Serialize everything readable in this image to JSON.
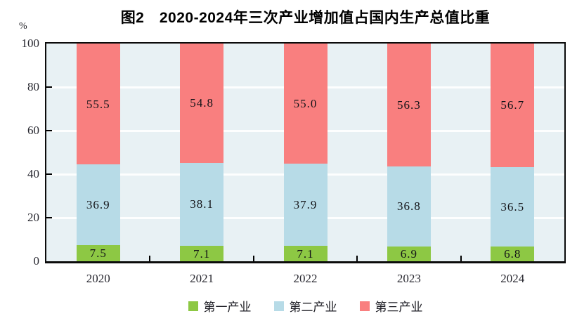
{
  "title": "图2　2020-2024年三次产业增加值占国内生产总值比重",
  "y_axis_unit": "%",
  "chart_data": {
    "type": "bar",
    "stacked": true,
    "title": "图2　2020-2024年三次产业增加值占国内生产总值比重",
    "categories": [
      "2020",
      "2021",
      "2022",
      "2023",
      "2024"
    ],
    "series": [
      {
        "name": "第一产业",
        "color": "#8dc844",
        "values": [
          7.5,
          7.1,
          7.1,
          6.9,
          6.8
        ]
      },
      {
        "name": "第二产业",
        "color": "#b7dbe7",
        "values": [
          36.9,
          38.1,
          37.9,
          36.8,
          36.5
        ]
      },
      {
        "name": "第三产业",
        "color": "#f97f7f",
        "values": [
          55.5,
          54.8,
          55.0,
          56.3,
          56.7
        ]
      }
    ],
    "xlabel": "",
    "ylabel": "%",
    "ylim": [
      0,
      100
    ],
    "yticks": [
      0,
      20,
      40,
      60,
      80,
      100
    ],
    "grid": true,
    "gridline_color": "#ffffff",
    "plot_background": "#e8f1f4",
    "axis_color": "#000000",
    "legend_position": "bottom"
  }
}
